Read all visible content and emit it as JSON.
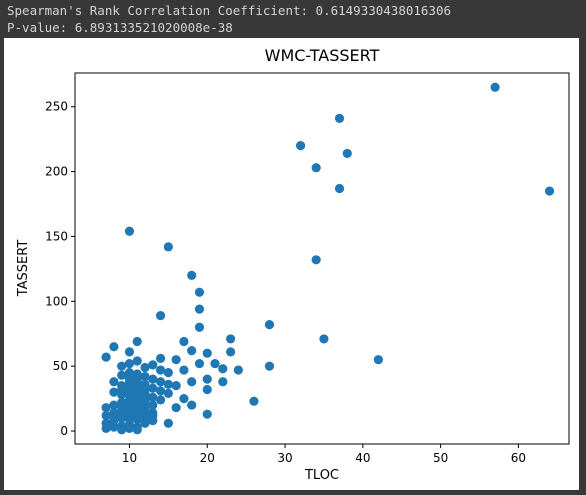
{
  "console": {
    "line1": "Spearman's Rank Correlation Coefficient: 0.6149330438016306",
    "line2": "P-value: 6.893133521020008e-38"
  },
  "colors": {
    "background": "#383838",
    "text": "#d4d4d4",
    "marker": "#1f77b4"
  },
  "chart_data": {
    "type": "scatter",
    "title": "WMC-TASSERT",
    "xlabel": "TLOC",
    "ylabel": "TASSERT",
    "xlim": [
      3,
      66.5
    ],
    "ylim": [
      -10,
      276
    ],
    "xticks": [
      10,
      20,
      30,
      40,
      50,
      60
    ],
    "yticks": [
      0,
      50,
      100,
      150,
      200,
      250
    ],
    "grid": false,
    "points": [
      [
        57,
        265
      ],
      [
        37,
        241
      ],
      [
        32,
        220
      ],
      [
        38,
        214
      ],
      [
        34,
        203
      ],
      [
        37,
        187
      ],
      [
        64,
        185
      ],
      [
        10,
        154
      ],
      [
        15,
        142
      ],
      [
        34,
        132
      ],
      [
        18,
        120
      ],
      [
        19,
        107
      ],
      [
        19,
        94
      ],
      [
        14,
        89
      ],
      [
        28,
        82
      ],
      [
        19,
        80
      ],
      [
        23,
        71
      ],
      [
        35,
        71
      ],
      [
        11,
        69
      ],
      [
        17,
        69
      ],
      [
        8,
        65
      ],
      [
        10,
        61
      ],
      [
        18,
        62
      ],
      [
        20,
        60
      ],
      [
        23,
        61
      ],
      [
        7,
        57
      ],
      [
        14,
        56
      ],
      [
        42,
        55
      ],
      [
        16,
        55
      ],
      [
        21,
        52
      ],
      [
        24,
        47
      ],
      [
        28,
        50
      ],
      [
        22,
        48
      ],
      [
        19,
        52
      ],
      [
        17,
        47
      ],
      [
        15,
        45
      ],
      [
        20,
        40
      ],
      [
        22,
        38
      ],
      [
        18,
        38
      ],
      [
        16,
        35
      ],
      [
        20,
        32
      ],
      [
        26,
        23
      ],
      [
        17,
        25
      ],
      [
        18,
        20
      ],
      [
        16,
        18
      ],
      [
        20,
        13
      ],
      [
        15,
        6
      ],
      [
        13,
        12
      ],
      [
        12,
        22
      ],
      [
        9,
        50
      ],
      [
        10,
        52
      ],
      [
        11,
        54
      ],
      [
        12,
        49
      ],
      [
        13,
        51
      ],
      [
        14,
        47
      ],
      [
        9,
        43
      ],
      [
        10,
        45
      ],
      [
        11,
        44
      ],
      [
        12,
        42
      ],
      [
        13,
        40
      ],
      [
        14,
        38
      ],
      [
        15,
        36
      ],
      [
        8,
        38
      ],
      [
        9,
        35
      ],
      [
        10,
        37
      ],
      [
        11,
        34
      ],
      [
        12,
        36
      ],
      [
        13,
        33
      ],
      [
        14,
        31
      ],
      [
        15,
        29
      ],
      [
        8,
        30
      ],
      [
        9,
        28
      ],
      [
        10,
        30
      ],
      [
        11,
        27
      ],
      [
        12,
        29
      ],
      [
        13,
        26
      ],
      [
        14,
        24
      ],
      [
        7,
        18
      ],
      [
        8,
        20
      ],
      [
        9,
        22
      ],
      [
        10,
        24
      ],
      [
        11,
        21
      ],
      [
        12,
        23
      ],
      [
        13,
        20
      ],
      [
        7,
        12
      ],
      [
        8,
        14
      ],
      [
        9,
        16
      ],
      [
        10,
        18
      ],
      [
        11,
        15
      ],
      [
        12,
        17
      ],
      [
        13,
        14
      ],
      [
        7,
        6
      ],
      [
        8,
        8
      ],
      [
        9,
        10
      ],
      [
        10,
        12
      ],
      [
        11,
        9
      ],
      [
        12,
        11
      ],
      [
        13,
        8
      ],
      [
        7,
        2
      ],
      [
        8,
        3
      ],
      [
        9,
        4
      ],
      [
        10,
        5
      ],
      [
        11,
        3
      ],
      [
        12,
        6
      ],
      [
        9,
        1
      ],
      [
        10,
        2
      ],
      [
        11,
        1
      ],
      [
        8,
        10
      ],
      [
        9,
        13
      ],
      [
        10,
        15
      ],
      [
        11,
        18
      ],
      [
        12,
        14
      ],
      [
        10,
        9
      ],
      [
        11,
        12
      ],
      [
        9,
        19
      ],
      [
        10,
        21
      ],
      [
        11,
        25
      ],
      [
        12,
        27
      ],
      [
        10,
        28
      ],
      [
        11,
        31
      ],
      [
        9,
        32
      ],
      [
        10,
        34
      ],
      [
        11,
        38
      ],
      [
        12,
        33
      ],
      [
        10,
        40
      ],
      [
        11,
        41
      ]
    ]
  }
}
